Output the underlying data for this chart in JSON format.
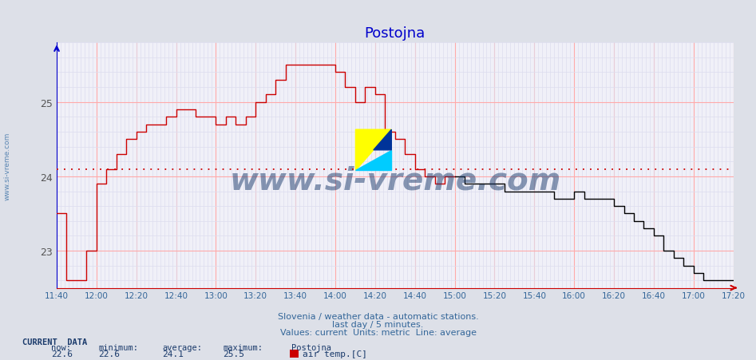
{
  "title": "Postojna",
  "title_color": "#0000cc",
  "background_color": "#dde0e8",
  "plot_bg_color": "#f0f0f8",
  "line_color_past": "#cc0000",
  "line_color_current": "#000000",
  "average_line_color": "#cc0000",
  "average_value": 24.1,
  "x_tick_labels": [
    "11:40",
    "12:00",
    "12:20",
    "12:40",
    "13:00",
    "13:20",
    "13:40",
    "14:00",
    "14:20",
    "14:40",
    "15:00",
    "15:20",
    "15:40",
    "16:00",
    "16:20",
    "16:40",
    "17:00",
    "17:20"
  ],
  "x_tick_positions": [
    11.667,
    12.0,
    12.333,
    12.667,
    13.0,
    13.333,
    13.667,
    14.0,
    14.333,
    14.667,
    15.0,
    15.333,
    15.667,
    16.0,
    16.333,
    16.667,
    17.0,
    17.333
  ],
  "ylim": [
    22.5,
    25.8
  ],
  "yticks": [
    23,
    24,
    25
  ],
  "footer_line1": "Slovenia / weather data - automatic stations.",
  "footer_line2": "last day / 5 minutes.",
  "footer_line3": "Values: current  Units: metric  Line: average",
  "footer_color": "#336699",
  "current_data_label": "CURRENT  DATA",
  "now_val": "22.6",
  "min_val": "22.6",
  "avg_val": "24.1",
  "max_val": "25.5",
  "station": "Postojna",
  "legend_label": "air temp.[C]",
  "legend_color": "#cc0000",
  "watermark": "www.si-vreme.com",
  "watermark_color": "#1a3a6b",
  "left_label": "www.si-vreme.com",
  "left_label_color": "#4477aa",
  "times_red": [
    11.667,
    11.75,
    11.833,
    11.917,
    12.0,
    12.083,
    12.167,
    12.25,
    12.333,
    12.417,
    12.5,
    12.583,
    12.667,
    12.75,
    12.833,
    12.917,
    13.0,
    13.083,
    13.167,
    13.25,
    13.333,
    13.417,
    13.5,
    13.583,
    13.667,
    13.75,
    13.833,
    13.917,
    14.0,
    14.083,
    14.167,
    14.25,
    14.333,
    14.417,
    14.5,
    14.583,
    14.667,
    14.75,
    14.833,
    14.917,
    15.0
  ],
  "temps_red": [
    23.5,
    22.6,
    22.6,
    23.0,
    23.9,
    24.1,
    24.3,
    24.5,
    24.6,
    24.7,
    24.7,
    24.8,
    24.9,
    24.9,
    24.8,
    24.8,
    24.7,
    24.8,
    24.7,
    24.8,
    25.0,
    25.1,
    25.3,
    25.5,
    25.5,
    25.5,
    25.5,
    25.5,
    25.4,
    25.2,
    25.0,
    25.2,
    25.1,
    24.6,
    24.5,
    24.3,
    24.1,
    24.0,
    23.9,
    24.0,
    24.0
  ],
  "times_black": [
    15.0,
    15.083,
    15.167,
    15.25,
    15.333,
    15.417,
    15.5,
    15.583,
    15.667,
    15.75,
    15.833,
    15.917,
    16.0,
    16.083,
    16.167,
    16.25,
    16.333,
    16.417,
    16.5,
    16.583,
    16.667,
    16.75,
    16.833,
    16.917,
    17.0,
    17.083,
    17.167,
    17.25,
    17.333
  ],
  "temps_black": [
    24.0,
    23.9,
    23.9,
    23.9,
    23.9,
    23.8,
    23.8,
    23.8,
    23.8,
    23.8,
    23.7,
    23.7,
    23.8,
    23.7,
    23.7,
    23.7,
    23.6,
    23.5,
    23.4,
    23.3,
    23.2,
    23.0,
    22.9,
    22.8,
    22.7,
    22.6,
    22.6,
    22.6,
    22.6
  ]
}
